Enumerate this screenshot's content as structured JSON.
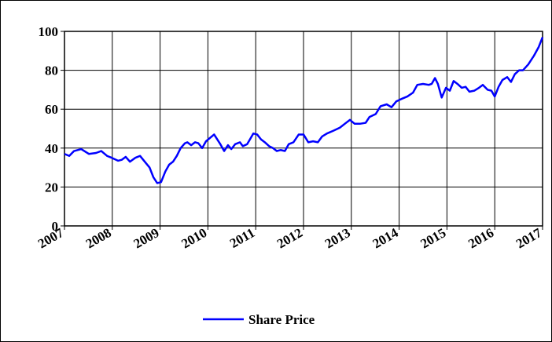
{
  "chart_data": {
    "type": "line",
    "x": [
      2007.0,
      2007.1,
      2007.2,
      2007.35,
      2007.51,
      2007.66,
      2007.77,
      2007.89,
      2007.99,
      2008.12,
      2008.2,
      2008.28,
      2008.37,
      2008.48,
      2008.58,
      2008.68,
      2008.78,
      2008.86,
      2008.94,
      2009.02,
      2009.11,
      2009.19,
      2009.27,
      2009.35,
      2009.43,
      2009.52,
      2009.57,
      2009.65,
      2009.73,
      2009.8,
      2009.88,
      2009.96,
      2010.13,
      2010.26,
      2010.34,
      2010.42,
      2010.49,
      2010.57,
      2010.67,
      2010.73,
      2010.82,
      2010.88,
      2010.95,
      2011.03,
      2011.11,
      2011.19,
      2011.28,
      2011.36,
      2011.44,
      2011.52,
      2011.61,
      2011.69,
      2011.79,
      2011.9,
      2012.0,
      2012.1,
      2012.2,
      2012.3,
      2012.39,
      2012.49,
      2012.63,
      2012.76,
      2012.89,
      2012.97,
      2013.07,
      2013.18,
      2013.3,
      2013.38,
      2013.51,
      2013.61,
      2013.74,
      2013.84,
      2013.94,
      2014.07,
      2014.17,
      2014.29,
      2014.38,
      2014.5,
      2014.62,
      2014.68,
      2014.75,
      2014.81,
      2014.89,
      2014.98,
      2015.06,
      2015.14,
      2015.22,
      2015.31,
      2015.39,
      2015.47,
      2015.57,
      2015.67,
      2015.75,
      2015.85,
      2015.93,
      2016.0,
      2016.08,
      2016.16,
      2016.26,
      2016.34,
      2016.42,
      2016.51,
      2016.59,
      2016.7,
      2016.82,
      2016.92,
      2017.0
    ],
    "series": [
      {
        "name": "Share Price",
        "color": "#0000ff",
        "values": [
          37,
          36,
          38.5,
          39.5,
          37,
          37.5,
          38.5,
          36,
          35,
          33.5,
          34,
          35.5,
          33,
          35,
          36,
          33,
          30,
          25,
          22,
          22.5,
          28,
          31.5,
          33,
          36,
          40,
          42.5,
          43,
          41.5,
          43,
          42.5,
          40,
          43.5,
          47,
          42,
          38.5,
          41.5,
          39.5,
          42,
          43,
          41,
          42,
          44.5,
          47.5,
          47,
          44.5,
          43,
          41,
          40,
          38.5,
          39,
          38.5,
          42,
          43,
          47,
          47,
          43,
          43.5,
          43,
          46,
          47.5,
          49,
          50.5,
          53,
          54.5,
          52.5,
          52.5,
          53,
          56,
          57.5,
          61.5,
          62.5,
          61,
          64,
          65.5,
          66.5,
          68.5,
          72.5,
          73,
          72.5,
          73,
          76,
          73,
          66,
          71,
          69.5,
          74.5,
          73,
          71,
          71.5,
          69,
          69.5,
          71,
          72.5,
          70,
          69.5,
          66.5,
          71.5,
          75,
          76.5,
          74,
          78,
          80,
          80,
          83,
          87.5,
          92,
          97
        ]
      }
    ],
    "xlim": [
      2007,
      2017
    ],
    "xticks": [
      2007,
      2008,
      2009,
      2010,
      2011,
      2012,
      2013,
      2014,
      2015,
      2016,
      2017
    ],
    "ylim": [
      0,
      100
    ],
    "yticks": [
      0,
      20,
      40,
      60,
      80,
      100
    ],
    "grid": true,
    "legend": "bottom"
  }
}
